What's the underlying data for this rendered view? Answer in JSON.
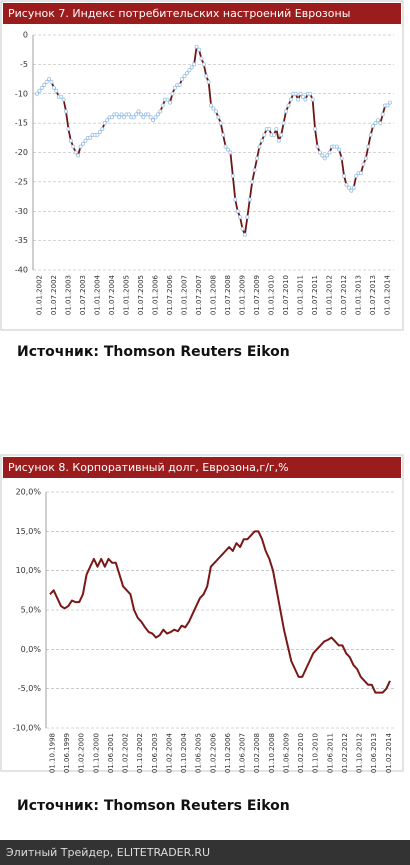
{
  "chart_data": [
    {
      "type": "line",
      "title": "Рисунок  7. Индекс потребительских настроений Еврозоны",
      "source": "Источник: Thomson Reuters Eikon",
      "categories": [
        "01.01.2002",
        null,
        null,
        null,
        null,
        null,
        "01.07.2002",
        null,
        null,
        null,
        null,
        null,
        "01.01.2003",
        null,
        null,
        null,
        null,
        null,
        "01.07.2003",
        null,
        null,
        null,
        null,
        null,
        "01.01.2004",
        null,
        null,
        null,
        null,
        null,
        "01.07.2004",
        null,
        null,
        null,
        null,
        null,
        "01.01.2005",
        null,
        null,
        null,
        null,
        null,
        "01.07.2005",
        null,
        null,
        null,
        null,
        null,
        "01.01.2006",
        null,
        null,
        null,
        null,
        null,
        "01.07.2006",
        null,
        null,
        null,
        null,
        null,
        "01.01.2007",
        null,
        null,
        null,
        null,
        null,
        "01.07.2007",
        null,
        null,
        null,
        null,
        null,
        "01.01.2008",
        null,
        null,
        null,
        null,
        null,
        "01.07.2008",
        null,
        null,
        null,
        null,
        null,
        "01.01.2009",
        null,
        null,
        null,
        null,
        null,
        "01.07.2009",
        null,
        null,
        null,
        null,
        null,
        "01.01.2010",
        null,
        null,
        null,
        null,
        null,
        "01.07.2010",
        null,
        null,
        null,
        null,
        null,
        "01.01.2011",
        null,
        null,
        null,
        null,
        null,
        "01.07.2011",
        null,
        null,
        null,
        null,
        null,
        "01.01.2012",
        null,
        null,
        null,
        null,
        null,
        "01.07.2012",
        null,
        null,
        null,
        null,
        null,
        "01.01.2013",
        null,
        null,
        null,
        null,
        null,
        "01.07.2013",
        null,
        null,
        null,
        null,
        null,
        "01.01.2014",
        null,
        null
      ],
      "series": [
        {
          "name": "Индекс",
          "color": "#6e1616",
          "marker_color": "#9cc3e6",
          "values": [
            -10,
            -9.5,
            -9,
            -8.5,
            -8,
            -7.5,
            -8,
            -9,
            -9.5,
            -10.5,
            -10.5,
            -11,
            -13,
            -16,
            -18,
            -19,
            -20,
            -20.5,
            -19,
            -18.5,
            -18,
            -17.5,
            -17.5,
            -17,
            -17,
            -17,
            -16.5,
            -16,
            -15,
            -14.5,
            -14,
            -14,
            -13.5,
            -13.5,
            -14,
            -13.5,
            -14,
            -13.5,
            -13.5,
            -14,
            -14,
            -13.5,
            -13,
            -13.5,
            -14,
            -13.5,
            -13.5,
            -14,
            -14.5,
            -14,
            -13.5,
            -13,
            -12,
            -11,
            -11,
            -11.5,
            -10,
            -9,
            -8.5,
            -8.5,
            -7.5,
            -7,
            -6.5,
            -6,
            -5.5,
            -5,
            -2,
            -2.5,
            -4,
            -5,
            -7,
            -8,
            -12,
            -12.5,
            -13,
            -14,
            -15,
            -17,
            -19,
            -19.5,
            -20,
            -24,
            -28,
            -30,
            -31,
            -33,
            -34,
            -31,
            -28,
            -25,
            -23,
            -21,
            -19,
            -18,
            -17,
            -16,
            -16,
            -17,
            -17,
            -16,
            -18,
            -17,
            -15,
            -13,
            -12,
            -11,
            -10,
            -10,
            -11,
            -10,
            -10.5,
            -11,
            -10,
            -10,
            -11,
            -16,
            -19,
            -20,
            -20.5,
            -21,
            -20.5,
            -20,
            -19,
            -19,
            -19,
            -19.5,
            -21,
            -24,
            -25.5,
            -26,
            -26.5,
            -26,
            -24,
            -23.5,
            -23.5,
            -22,
            -21,
            -19,
            -17,
            -15.5,
            -15,
            -14.5,
            -15,
            -13.5,
            -12,
            -12,
            -11.5
          ]
        }
      ],
      "ylim": [
        -40,
        0
      ],
      "yticks": [
        0,
        -5,
        -10,
        -15,
        -20,
        -25,
        -30,
        -35,
        -40
      ],
      "grid": true,
      "markers": true
    },
    {
      "type": "line",
      "title": "Рисунок 8. Корпоративный  долг, Еврозона,г/г,%",
      "source": "Источник: Thomson Reuters Eikon",
      "categories": [
        "01.10.1998",
        null,
        null,
        null,
        "01.06.1999",
        null,
        null,
        null,
        "01.02.2000",
        null,
        null,
        null,
        "01.10.2000",
        null,
        null,
        null,
        "01.06.2001",
        null,
        null,
        null,
        "01.02.2002",
        null,
        null,
        null,
        "01.10.2002",
        null,
        null,
        null,
        "01.06.2003",
        null,
        null,
        null,
        "01.02.2004",
        null,
        null,
        null,
        "01.10.2004",
        null,
        null,
        null,
        "01.06.2005",
        null,
        null,
        null,
        "01.02.2006",
        null,
        null,
        null,
        "01.10.2006",
        null,
        null,
        null,
        "01.06.2007",
        null,
        null,
        null,
        "01.02.2008",
        null,
        null,
        null,
        "01.10.2008",
        null,
        null,
        null,
        "01.06.2009",
        null,
        null,
        null,
        "01.02.2010",
        null,
        null,
        null,
        "01.10.2010",
        null,
        null,
        null,
        "01.06.2011",
        null,
        null,
        null,
        "01.02.2012",
        null,
        null,
        null,
        "01.10.2012",
        null,
        null,
        null,
        "01.06.2013",
        null,
        null,
        null,
        "01.02.2014",
        null
      ],
      "series": [
        {
          "name": "Корпоративный долг",
          "color": "#7a1818",
          "values": [
            7.0,
            7.5,
            6.5,
            5.5,
            5.2,
            5.5,
            6.2,
            6.0,
            6.0,
            7.0,
            9.5,
            10.5,
            11.5,
            10.5,
            11.5,
            10.5,
            11.5,
            11.0,
            11.0,
            9.5,
            8.0,
            7.5,
            7.0,
            5.0,
            4.0,
            3.5,
            2.8,
            2.2,
            2.0,
            1.5,
            1.8,
            2.5,
            2.0,
            2.2,
            2.5,
            2.3,
            3.0,
            2.8,
            3.5,
            4.5,
            5.5,
            6.5,
            7.0,
            8.0,
            10.5,
            11.0,
            11.5,
            12.0,
            12.5,
            13.0,
            12.5,
            13.5,
            13.0,
            14.0,
            14.0,
            14.5,
            15.0,
            15.0,
            14.0,
            12.5,
            11.5,
            10.0,
            7.5,
            5.0,
            2.5,
            0.5,
            -1.5,
            -2.5,
            -3.5,
            -3.5,
            -2.5,
            -1.5,
            -0.5,
            0.0,
            0.5,
            1.0,
            1.2,
            1.5,
            1.0,
            0.5,
            0.5,
            -0.5,
            -1.0,
            -2.0,
            -2.5,
            -3.5,
            -4.0,
            -4.5,
            -4.5,
            -5.5,
            -5.5,
            -5.5,
            -5.0,
            -4.0
          ]
        }
      ],
      "ylim": [
        -10,
        20
      ],
      "yticks": [
        {
          "value": 20,
          "label": "20,0%"
        },
        {
          "value": 15,
          "label": "15,0%"
        },
        {
          "value": 10,
          "label": "10,0%"
        },
        {
          "value": 5,
          "label": "5,0%"
        },
        {
          "value": 0,
          "label": "0,0%"
        },
        {
          "value": -5,
          "label": "-5,0%"
        },
        {
          "value": -10,
          "label": "-10,0%"
        }
      ],
      "grid": true,
      "markers": false
    }
  ],
  "footer": "Элитный Трейдер, ELITETRADER.RU"
}
